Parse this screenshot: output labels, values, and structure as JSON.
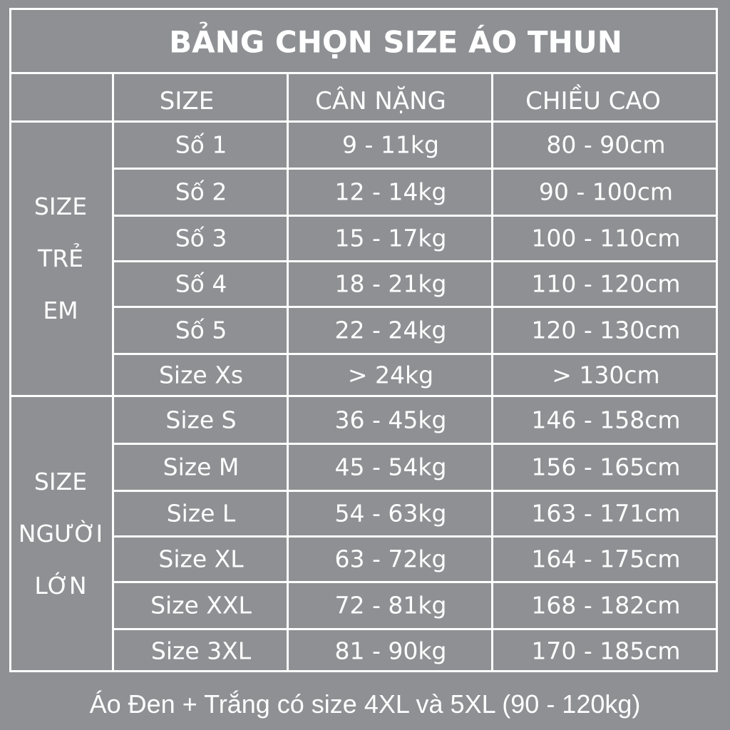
{
  "title": "BẢNG CHỌN SIZE ÁO THUN",
  "headers": {
    "size": "SIZE",
    "weight": "CÂN NẶNG",
    "height": "CHIỀU CAO"
  },
  "groups": [
    {
      "label_lines": [
        "SIZE",
        "TRẺ",
        "EM"
      ],
      "rows": [
        {
          "size": "Số 1",
          "weight": "9 - 11kg",
          "height": "80 - 90cm"
        },
        {
          "size": "Số 2",
          "weight": "12 - 14kg",
          "height": "90 - 100cm"
        },
        {
          "size": "Số 3",
          "weight": "15 - 17kg",
          "height": "100 - 110cm"
        },
        {
          "size": "Số 4",
          "weight": "18 - 21kg",
          "height": "110 - 120cm"
        },
        {
          "size": "Số 5",
          "weight": "22 - 24kg",
          "height": "120 - 130cm"
        },
        {
          "size": "Size Xs",
          "weight": "> 24kg",
          "height": "> 130cm"
        }
      ]
    },
    {
      "label_lines": [
        "SIZE",
        "NGƯỜI",
        "LỚN"
      ],
      "rows": [
        {
          "size": "Size S",
          "weight": "36 - 45kg",
          "height": "146 - 158cm"
        },
        {
          "size": "Size M",
          "weight": "45 - 54kg",
          "height": "156 - 165cm"
        },
        {
          "size": "Size L",
          "weight": "54 - 63kg",
          "height": "163 - 171cm"
        },
        {
          "size": "Size XL",
          "weight": "63 - 72kg",
          "height": "164 - 175cm"
        },
        {
          "size": "Size XXL",
          "weight": "72 - 81kg",
          "height": "168 - 182cm"
        },
        {
          "size": "Size 3XL",
          "weight": "81 - 90kg",
          "height": "170 - 185cm"
        }
      ]
    }
  ],
  "footer": "Áo Đen + Trắng có size 4XL và 5XL (90 - 120kg)",
  "colors": {
    "background": "#8f9094",
    "lines": "#ffffff",
    "text": "#ffffff"
  }
}
